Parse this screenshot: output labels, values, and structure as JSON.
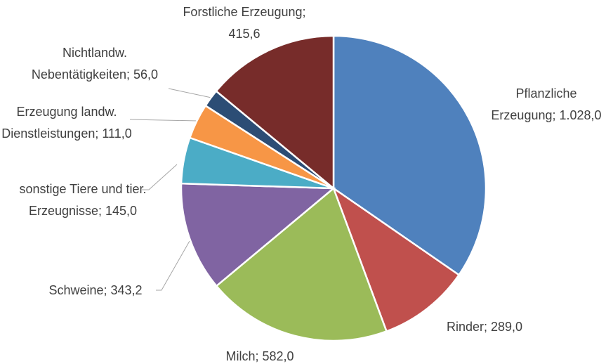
{
  "chart_data": {
    "type": "pie",
    "categories": [
      "Pflanzliche Erzeugung",
      "Rinder",
      "Milch",
      "Schweine",
      "sonstige Tiere und tier. Erzeugnisse",
      "Erzeugung landw. Dienstleistungen",
      "Nichtlandw. Nebentätigkeiten",
      "Forstliche Erzeugung"
    ],
    "values": [
      1028.0,
      289.0,
      582.0,
      343.2,
      145.0,
      111.0,
      56.0,
      415.6
    ],
    "value_labels": [
      "1.028,0",
      "289,0",
      "582,0",
      "343,2",
      "145,0",
      "111,0",
      "56,0",
      "415,6"
    ],
    "label_separator": "; ",
    "colors": [
      "#4f81bd",
      "#c0504d",
      "#9bbb59",
      "#8064a2",
      "#4bacc6",
      "#f79646",
      "#2c4d75",
      "#772c2a"
    ]
  }
}
